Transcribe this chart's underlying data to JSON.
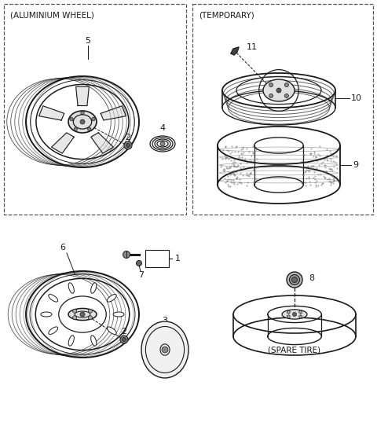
{
  "background_color": "#ffffff",
  "line_color": "#1a1a1a",
  "box1_label": "(ALUMINIUM WHEEL)",
  "box2_label": "(TEMPORARY)",
  "spare_label": "(SPARE TIRE)",
  "fig_width": 4.8,
  "fig_height": 5.37,
  "dpi": 100
}
